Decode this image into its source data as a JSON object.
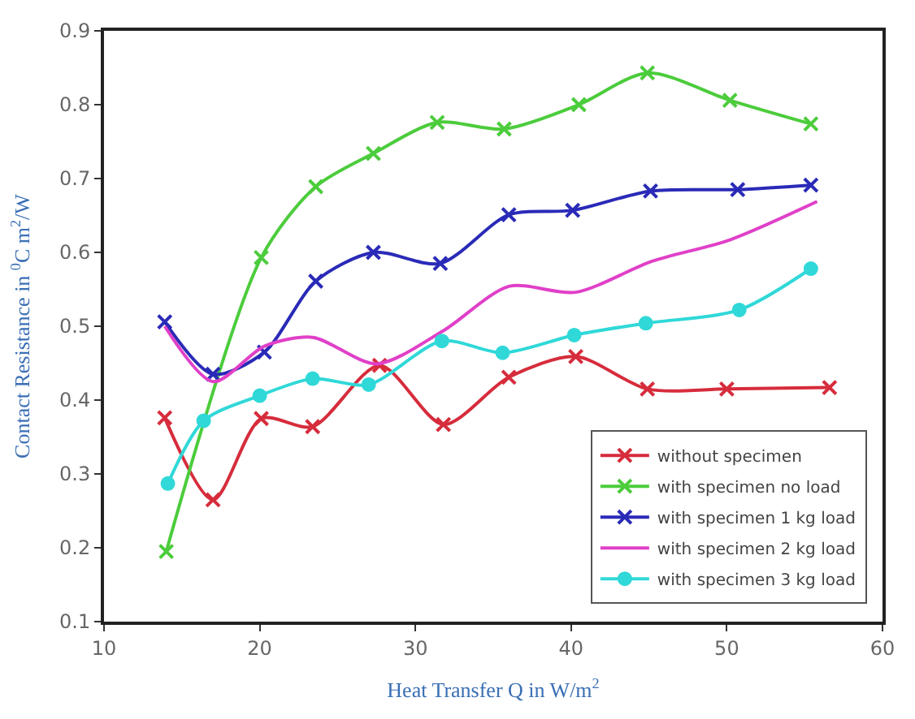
{
  "chart_data": {
    "type": "line",
    "xlabel": "Heat Transfer Q in W/m$^{2}$",
    "ylabel": "Contact Resistance in $^{0}$C m$^{2}$/W",
    "xlim": [
      10,
      60
    ],
    "xticks": [
      10,
      20,
      30,
      40,
      50,
      60
    ],
    "ylim": [
      0.1,
      0.9
    ],
    "yticks": [
      0.1,
      0.2,
      0.3,
      0.4,
      0.5,
      0.6,
      0.7,
      0.8,
      0.9
    ],
    "legend": "bottom right",
    "series": [
      {
        "name": "without specimen",
        "color": "#d62c3c",
        "marker": "cross",
        "x": [
          13.9,
          17.0,
          20.1,
          23.4,
          27.7,
          31.8,
          36.0,
          40.3,
          44.9,
          50.0,
          56.6
        ],
        "values": [
          0.376,
          0.265,
          0.375,
          0.364,
          0.447,
          0.367,
          0.431,
          0.459,
          0.415,
          0.415,
          0.417
        ]
      },
      {
        "name": "with specimen no load",
        "color": "#4ccc3c",
        "marker": "cross",
        "x": [
          14.0,
          20.1,
          23.6,
          27.3,
          31.4,
          35.7,
          40.5,
          44.9,
          50.2,
          55.4
        ],
        "values": [
          0.195,
          0.593,
          0.689,
          0.734,
          0.776,
          0.767,
          0.8,
          0.843,
          0.806,
          0.774
        ]
      },
      {
        "name": "with specimen 1 kg load",
        "color": "#2a2ab8",
        "marker": "cross",
        "x": [
          13.9,
          17.0,
          20.3,
          23.6,
          27.3,
          31.6,
          36.0,
          40.1,
          45.1,
          50.7,
          55.4
        ],
        "values": [
          0.506,
          0.435,
          0.465,
          0.561,
          0.6,
          0.585,
          0.651,
          0.657,
          0.683,
          0.685,
          0.691
        ]
      },
      {
        "name": "with specimen 2 kg load",
        "color": "#e040c8",
        "marker": "none",
        "x": [
          13.9,
          17.0,
          20.3,
          23.4,
          27.5,
          31.8,
          36.0,
          40.3,
          45.2,
          50.2,
          55.8
        ],
        "values": [
          0.5,
          0.425,
          0.473,
          0.485,
          0.449,
          0.494,
          0.554,
          0.546,
          0.588,
          0.617,
          0.669
        ]
      },
      {
        "name": "with specimen 3 kg load",
        "color": "#30d8d8",
        "marker": "circle",
        "x": [
          14.1,
          16.4,
          20.0,
          23.4,
          27.0,
          31.7,
          35.6,
          40.2,
          44.8,
          50.8,
          55.4
        ],
        "values": [
          0.287,
          0.372,
          0.406,
          0.429,
          0.421,
          0.48,
          0.464,
          0.488,
          0.504,
          0.522,
          0.578
        ]
      }
    ]
  }
}
